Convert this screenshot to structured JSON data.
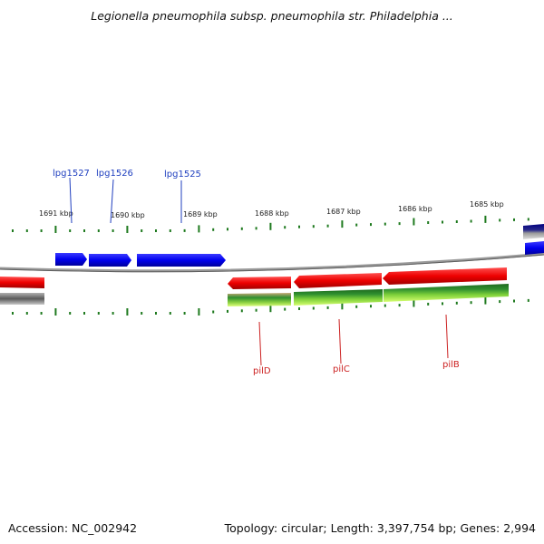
{
  "title": "Legionella pneumophila subsp. pneumophila str. Philadelphia ...",
  "footer": {
    "accession": "Accession: NC_002942",
    "summary": "Topology: circular; Length: 3,397,754 bp; Genes: 2,994"
  },
  "colors": {
    "forward_gene": "#1a1aff",
    "reverse_gene": "#ff1a1a",
    "tick": "#1f7a1f",
    "backbone": "#8a8a8a",
    "label_forward": "#1f3fbf",
    "label_reverse": "#cc2222"
  },
  "scale_labels": [
    "1691 kbp",
    "1690 kbp",
    "1689 kbp",
    "1688 kbp",
    "1687 kbp",
    "1686 kbp",
    "1685 kbp"
  ],
  "genes_forward": [
    {
      "label": "lpg1527"
    },
    {
      "label": "lpg1526"
    },
    {
      "label": "lpg1525"
    }
  ],
  "genes_reverse": [
    {
      "label": "pilD"
    },
    {
      "label": "pilC"
    },
    {
      "label": "pilB"
    }
  ]
}
